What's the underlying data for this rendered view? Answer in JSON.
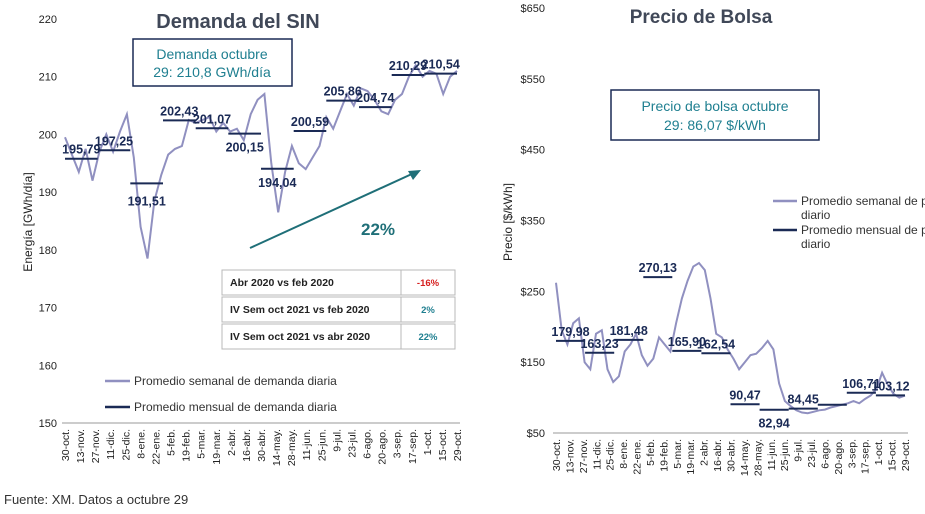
{
  "footer": {
    "source": "Fuente: XM. Datos a octubre 29"
  },
  "chart_data": [
    {
      "type": "line",
      "title": "Demanda del SIN",
      "ylabel": "Energía [GWh/día]",
      "ylim": [
        150,
        220
      ],
      "yticks": [
        "150",
        "160",
        "170",
        "180",
        "190",
        "200",
        "210",
        "220"
      ],
      "x_labels": [
        "30-oct.",
        "13-nov.",
        "27-nov.",
        "11-dic.",
        "25-dic.",
        "8-ene.",
        "22-ene.",
        "5-feb.",
        "19-feb.",
        "5-mar.",
        "19-mar.",
        "2-abr.",
        "16-abr.",
        "30-abr.",
        "14-may.",
        "28-may.",
        "11-jun.",
        "25-jun.",
        "9-jul.",
        "23-jul.",
        "6-ago.",
        "20-ago.",
        "3-sep.",
        "17-sep.",
        "1-oct.",
        "15-oct.",
        "29-oct."
      ],
      "annotation_box": {
        "line1": "Demanda octubre",
        "line2": "29: 210,8 GWh/día"
      },
      "growth_label": "22%",
      "legend": {
        "weekly": "Promedio semanal de demanda diaria",
        "monthly": "Promedio mensual de demanda diaria",
        "placement": "bottom"
      },
      "weekly_series": {
        "name": "Promedio semanal de demanda diaria",
        "values": [
          199.5,
          196.5,
          193.5,
          197.5,
          192,
          197,
          200,
          197,
          200.5,
          203.5,
          196,
          184,
          178.5,
          188.5,
          193,
          196.5,
          197.5,
          198,
          202.5,
          202,
          202.5,
          203,
          200.5,
          202,
          200.5,
          201,
          199,
          203.5,
          206,
          207,
          195,
          186.5,
          193.5,
          198,
          195,
          194,
          196,
          198,
          203,
          201,
          204,
          207,
          205,
          208,
          207.5,
          206,
          204,
          203.5,
          206,
          207,
          210,
          212,
          210,
          211,
          210.5,
          207,
          210,
          211
        ]
      },
      "monthly_series": {
        "name": "Promedio mensual de demanda diaria",
        "segments": [
          {
            "value": 195.79,
            "label": "195,79"
          },
          {
            "value": 197.25,
            "label": "197,25"
          },
          {
            "value": 191.51,
            "label": "191,51"
          },
          {
            "value": 202.43,
            "label": "202,43"
          },
          {
            "value": 201.07,
            "label": "201,07"
          },
          {
            "value": 200.15,
            "label": "200,15"
          },
          {
            "value": 194.04,
            "label": "194,04"
          },
          {
            "value": 200.59,
            "label": "200,59"
          },
          {
            "value": 205.86,
            "label": "205,86"
          },
          {
            "value": 204.74,
            "label": "204,74"
          },
          {
            "value": 210.29,
            "label": "210,29"
          },
          {
            "value": 210.54,
            "label": "210,54"
          }
        ]
      },
      "comparison_table": [
        {
          "label": "Abr 2020 vs feb 2020",
          "value": "-16%",
          "color": "#d62020"
        },
        {
          "label": "IV Sem oct 2021 vs feb 2020",
          "value": "2%",
          "color": "#1f7f90"
        },
        {
          "label": "IV Sem oct 2021 vs abr 2020",
          "value": "22%",
          "color": "#1f7f90"
        }
      ]
    },
    {
      "type": "line",
      "title": "Precio de Bolsa",
      "ylabel": "Precio [$/kWh]",
      "ylim": [
        50,
        650
      ],
      "yticks": [
        "$50",
        "$150",
        "$250",
        "$350",
        "$450",
        "$550",
        "$650"
      ],
      "x_labels": [
        "30-oct.",
        "13-nov.",
        "27-nov.",
        "11-dic.",
        "25-dic.",
        "8-ene.",
        "22-ene.",
        "5-feb.",
        "19-feb.",
        "5-mar.",
        "19-mar.",
        "2-abr.",
        "16-abr.",
        "30-abr.",
        "14-may.",
        "28-may.",
        "11-jun.",
        "25-jun.",
        "9-jul.",
        "23-jul.",
        "6-ago.",
        "20-ago.",
        "3-sep.",
        "17-sep.",
        "1-oct.",
        "15-oct.",
        "29-oct."
      ],
      "annotation_box": {
        "line1": "Precio de bolsa octubre",
        "line2": "29: 86,07 $/kWh"
      },
      "legend": {
        "weekly": "Promedio semanal de precio diario",
        "monthly": "Promedio mensual de precio diario",
        "placement": "right"
      },
      "weekly_series": {
        "name": "Promedio semanal de precio diario",
        "values": [
          262,
          195,
          175,
          205,
          212,
          150,
          140,
          190,
          195,
          140,
          122,
          130,
          165,
          175,
          190,
          160,
          145,
          155,
          185,
          175,
          165,
          205,
          240,
          265,
          285,
          290,
          280,
          240,
          190,
          185,
          168,
          155,
          140,
          150,
          160,
          162,
          170,
          180,
          168,
          120,
          95,
          88,
          82,
          79,
          78,
          80,
          82,
          83,
          86,
          88,
          90,
          92,
          95,
          92,
          98,
          103,
          112,
          135,
          118,
          105,
          100,
          103
        ]
      },
      "monthly_series": {
        "name": "Promedio mensual de precio diario",
        "segments": [
          {
            "value": 179.98,
            "label": "179,98"
          },
          {
            "value": 163.23,
            "label": "163,23"
          },
          {
            "value": 181.48,
            "label": "181,48"
          },
          {
            "value": 270.13,
            "label": "270,13"
          },
          {
            "value": 165.9,
            "label": "165,90"
          },
          {
            "value": 162.54,
            "label": "162,54"
          },
          {
            "value": 90.47,
            "label": "90,47"
          },
          {
            "value": 82.94,
            "label": "82,94"
          },
          {
            "value": 84.45,
            "label": "84,45"
          },
          {
            "value": 90.0,
            "label": ""
          },
          {
            "value": 106.71,
            "label": "106,71"
          },
          {
            "value": 103.12,
            "label": "103,12"
          }
        ]
      }
    }
  ]
}
